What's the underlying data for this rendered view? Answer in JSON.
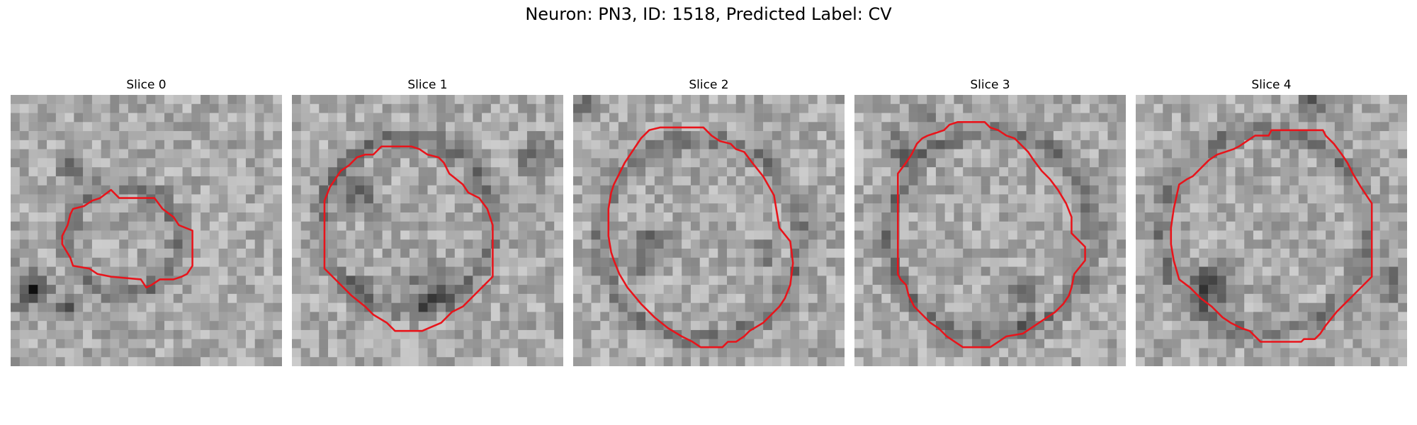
{
  "figure": {
    "title": "Neuron: PN3, ID: 1518, Predicted Label: CV"
  },
  "contour_color": "#e8141b",
  "panels": [
    {
      "title": "Slice 0",
      "seed": 11,
      "contour": [
        [
          0.37,
          0.35
        ],
        [
          0.38,
          0.36
        ],
        [
          0.4,
          0.38
        ],
        [
          0.53,
          0.38
        ],
        [
          0.56,
          0.42
        ],
        [
          0.6,
          0.45
        ],
        [
          0.62,
          0.48
        ],
        [
          0.67,
          0.5
        ],
        [
          0.67,
          0.63
        ],
        [
          0.65,
          0.66
        ],
        [
          0.63,
          0.67
        ],
        [
          0.6,
          0.68
        ],
        [
          0.55,
          0.68
        ],
        [
          0.52,
          0.7
        ],
        [
          0.5,
          0.71
        ],
        [
          0.48,
          0.68
        ],
        [
          0.37,
          0.67
        ],
        [
          0.32,
          0.66
        ],
        [
          0.29,
          0.64
        ],
        [
          0.23,
          0.63
        ],
        [
          0.22,
          0.6
        ],
        [
          0.19,
          0.55
        ],
        [
          0.19,
          0.52
        ],
        [
          0.21,
          0.48
        ],
        [
          0.22,
          0.44
        ],
        [
          0.23,
          0.42
        ],
        [
          0.27,
          0.41
        ],
        [
          0.3,
          0.39
        ],
        [
          0.33,
          0.38
        ]
      ]
    },
    {
      "title": "Slice 1",
      "seed": 23,
      "contour": [
        [
          0.35,
          0.19
        ],
        [
          0.44,
          0.19
        ],
        [
          0.47,
          0.2
        ],
        [
          0.5,
          0.22
        ],
        [
          0.54,
          0.23
        ],
        [
          0.56,
          0.25
        ],
        [
          0.58,
          0.29
        ],
        [
          0.63,
          0.33
        ],
        [
          0.65,
          0.36
        ],
        [
          0.69,
          0.38
        ],
        [
          0.72,
          0.42
        ],
        [
          0.74,
          0.48
        ],
        [
          0.74,
          0.67
        ],
        [
          0.7,
          0.71
        ],
        [
          0.63,
          0.78
        ],
        [
          0.59,
          0.8
        ],
        [
          0.55,
          0.84
        ],
        [
          0.48,
          0.87
        ],
        [
          0.38,
          0.87
        ],
        [
          0.35,
          0.84
        ],
        [
          0.3,
          0.81
        ],
        [
          0.27,
          0.78
        ],
        [
          0.22,
          0.74
        ],
        [
          0.17,
          0.69
        ],
        [
          0.12,
          0.64
        ],
        [
          0.12,
          0.39
        ],
        [
          0.14,
          0.34
        ],
        [
          0.16,
          0.31
        ],
        [
          0.18,
          0.28
        ],
        [
          0.21,
          0.26
        ],
        [
          0.24,
          0.23
        ],
        [
          0.27,
          0.22
        ],
        [
          0.3,
          0.22
        ],
        [
          0.33,
          0.19
        ]
      ]
    },
    {
      "title": "Slice 2",
      "seed": 37,
      "contour": [
        [
          0.28,
          0.13
        ],
        [
          0.32,
          0.12
        ],
        [
          0.48,
          0.12
        ],
        [
          0.51,
          0.15
        ],
        [
          0.54,
          0.17
        ],
        [
          0.58,
          0.18
        ],
        [
          0.6,
          0.2
        ],
        [
          0.63,
          0.21
        ],
        [
          0.66,
          0.25
        ],
        [
          0.7,
          0.3
        ],
        [
          0.74,
          0.37
        ],
        [
          0.75,
          0.43
        ],
        [
          0.76,
          0.49
        ],
        [
          0.8,
          0.54
        ],
        [
          0.81,
          0.62
        ],
        [
          0.8,
          0.7
        ],
        [
          0.78,
          0.75
        ],
        [
          0.76,
          0.78
        ],
        [
          0.73,
          0.81
        ],
        [
          0.7,
          0.84
        ],
        [
          0.65,
          0.87
        ],
        [
          0.63,
          0.89
        ],
        [
          0.6,
          0.91
        ],
        [
          0.57,
          0.91
        ],
        [
          0.55,
          0.93
        ],
        [
          0.47,
          0.93
        ],
        [
          0.44,
          0.91
        ],
        [
          0.4,
          0.89
        ],
        [
          0.35,
          0.86
        ],
        [
          0.3,
          0.82
        ],
        [
          0.25,
          0.77
        ],
        [
          0.2,
          0.71
        ],
        [
          0.17,
          0.66
        ],
        [
          0.15,
          0.61
        ],
        [
          0.14,
          0.58
        ],
        [
          0.13,
          0.52
        ],
        [
          0.13,
          0.42
        ],
        [
          0.14,
          0.36
        ],
        [
          0.15,
          0.33
        ],
        [
          0.17,
          0.29
        ],
        [
          0.19,
          0.25
        ],
        [
          0.23,
          0.19
        ],
        [
          0.25,
          0.16
        ]
      ]
    },
    {
      "title": "Slice 3",
      "seed": 53,
      "contour": [
        [
          0.38,
          0.1
        ],
        [
          0.48,
          0.1
        ],
        [
          0.5,
          0.12
        ],
        [
          0.53,
          0.13
        ],
        [
          0.56,
          0.15
        ],
        [
          0.59,
          0.16
        ],
        [
          0.62,
          0.19
        ],
        [
          0.64,
          0.21
        ],
        [
          0.66,
          0.24
        ],
        [
          0.69,
          0.28
        ],
        [
          0.72,
          0.31
        ],
        [
          0.75,
          0.35
        ],
        [
          0.78,
          0.4
        ],
        [
          0.8,
          0.45
        ],
        [
          0.8,
          0.51
        ],
        [
          0.85,
          0.56
        ],
        [
          0.85,
          0.61
        ],
        [
          0.81,
          0.66
        ],
        [
          0.8,
          0.71
        ],
        [
          0.79,
          0.74
        ],
        [
          0.77,
          0.77
        ],
        [
          0.74,
          0.8
        ],
        [
          0.71,
          0.82
        ],
        [
          0.68,
          0.84
        ],
        [
          0.65,
          0.86
        ],
        [
          0.62,
          0.88
        ],
        [
          0.56,
          0.89
        ],
        [
          0.53,
          0.91
        ],
        [
          0.5,
          0.93
        ],
        [
          0.4,
          0.93
        ],
        [
          0.37,
          0.91
        ],
        [
          0.34,
          0.89
        ],
        [
          0.31,
          0.86
        ],
        [
          0.28,
          0.84
        ],
        [
          0.25,
          0.81
        ],
        [
          0.22,
          0.78
        ],
        [
          0.2,
          0.74
        ],
        [
          0.19,
          0.7
        ],
        [
          0.17,
          0.68
        ],
        [
          0.16,
          0.66
        ],
        [
          0.16,
          0.29
        ],
        [
          0.19,
          0.25
        ],
        [
          0.21,
          0.22
        ],
        [
          0.23,
          0.18
        ],
        [
          0.25,
          0.16
        ],
        [
          0.27,
          0.15
        ],
        [
          0.3,
          0.14
        ],
        [
          0.33,
          0.13
        ],
        [
          0.35,
          0.11
        ]
      ]
    },
    {
      "title": "Slice 4",
      "seed": 71,
      "contour": [
        [
          0.38,
          0.19
        ],
        [
          0.41,
          0.17
        ],
        [
          0.44,
          0.15
        ],
        [
          0.49,
          0.15
        ],
        [
          0.5,
          0.13
        ],
        [
          0.69,
          0.13
        ],
        [
          0.7,
          0.15
        ],
        [
          0.73,
          0.18
        ],
        [
          0.76,
          0.22
        ],
        [
          0.78,
          0.25
        ],
        [
          0.8,
          0.29
        ],
        [
          0.83,
          0.34
        ],
        [
          0.87,
          0.4
        ],
        [
          0.87,
          0.67
        ],
        [
          0.82,
          0.72
        ],
        [
          0.78,
          0.76
        ],
        [
          0.74,
          0.8
        ],
        [
          0.7,
          0.85
        ],
        [
          0.68,
          0.88
        ],
        [
          0.66,
          0.9
        ],
        [
          0.62,
          0.9
        ],
        [
          0.61,
          0.91
        ],
        [
          0.46,
          0.91
        ],
        [
          0.44,
          0.89
        ],
        [
          0.42,
          0.87
        ],
        [
          0.39,
          0.86
        ],
        [
          0.35,
          0.84
        ],
        [
          0.32,
          0.82
        ],
        [
          0.28,
          0.78
        ],
        [
          0.24,
          0.75
        ],
        [
          0.2,
          0.71
        ],
        [
          0.16,
          0.68
        ],
        [
          0.14,
          0.61
        ],
        [
          0.13,
          0.55
        ],
        [
          0.13,
          0.49
        ],
        [
          0.14,
          0.42
        ],
        [
          0.16,
          0.33
        ],
        [
          0.19,
          0.31
        ],
        [
          0.21,
          0.3
        ],
        [
          0.23,
          0.28
        ],
        [
          0.25,
          0.26
        ],
        [
          0.27,
          0.24
        ],
        [
          0.3,
          0.22
        ],
        [
          0.33,
          0.21
        ],
        [
          0.36,
          0.2
        ]
      ]
    }
  ]
}
